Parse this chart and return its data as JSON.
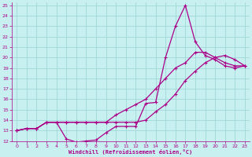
{
  "xlabel": "Windchill (Refroidissement éolien,°C)",
  "background_color": "#c8f0f0",
  "grid_color": "#a0d8d8",
  "line_color": "#aa0088",
  "xlim": [
    -0.5,
    23.5
  ],
  "ylim": [
    12,
    25.3
  ],
  "xticks": [
    0,
    1,
    2,
    3,
    4,
    5,
    6,
    7,
    8,
    9,
    10,
    11,
    12,
    13,
    14,
    15,
    16,
    17,
    18,
    19,
    20,
    21,
    22,
    23
  ],
  "yticks": [
    12,
    13,
    14,
    15,
    16,
    17,
    18,
    19,
    20,
    21,
    22,
    23,
    24,
    25
  ],
  "series1_x": [
    0,
    1,
    2,
    3,
    4,
    5,
    6,
    7,
    8,
    9,
    10,
    11,
    12,
    13,
    14,
    15,
    16,
    17,
    18,
    19,
    20,
    21,
    22,
    23
  ],
  "series1_y": [
    13.0,
    13.2,
    13.2,
    13.8,
    13.8,
    12.2,
    11.9,
    12.0,
    12.1,
    12.8,
    13.4,
    13.4,
    13.4,
    15.6,
    15.7,
    20.0,
    23.0,
    25.0,
    21.5,
    20.2,
    19.8,
    19.2,
    19.0,
    19.2
  ],
  "series2_x": [
    0,
    1,
    2,
    3,
    4,
    5,
    6,
    7,
    8,
    9,
    10,
    11,
    12,
    13,
    14,
    15,
    16,
    17,
    18,
    19,
    20,
    21,
    22,
    23
  ],
  "series2_y": [
    13.0,
    13.2,
    13.2,
    13.8,
    13.8,
    13.8,
    13.8,
    13.8,
    13.8,
    13.8,
    13.8,
    13.8,
    13.8,
    14.0,
    14.8,
    15.5,
    16.5,
    17.8,
    18.7,
    19.5,
    20.0,
    19.5,
    19.2,
    19.2
  ],
  "series3_x": [
    0,
    1,
    2,
    3,
    4,
    5,
    6,
    7,
    8,
    9,
    10,
    11,
    12,
    13,
    14,
    15,
    16,
    17,
    18,
    19,
    20,
    21,
    22,
    23
  ],
  "series3_y": [
    13.0,
    13.2,
    13.2,
    13.8,
    13.8,
    13.8,
    13.8,
    13.8,
    13.8,
    13.8,
    14.5,
    15.0,
    15.5,
    16.0,
    17.0,
    18.0,
    19.0,
    19.5,
    20.5,
    20.5,
    20.0,
    20.2,
    19.8,
    19.2
  ]
}
